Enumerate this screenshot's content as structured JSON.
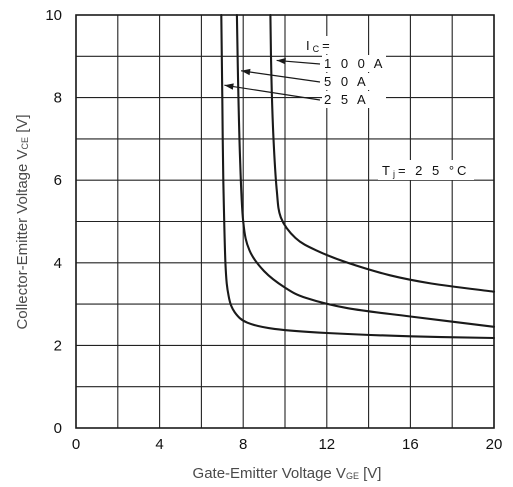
{
  "chart_data": {
    "type": "line",
    "xlabel": {
      "main": "Gate-Emitter Voltage V",
      "sub": "GE",
      "unit": " [V]"
    },
    "ylabel": {
      "main": "Collector-Emitter Voltage V",
      "sub": "CE",
      "unit": " [V]"
    },
    "xlim": [
      0,
      20
    ],
    "ylim": [
      0,
      10
    ],
    "x_ticks": [
      0,
      4,
      8,
      12,
      16,
      20
    ],
    "y_ticks": [
      0,
      2,
      4,
      6,
      8,
      10
    ],
    "x_tick_labels": [
      "0",
      "4",
      "8",
      "12",
      "16",
      "20"
    ],
    "y_tick_labels": [
      "0",
      "2",
      "4",
      "6",
      "8",
      "10"
    ],
    "x_grid_step": 2,
    "y_grid_step": 1,
    "grid": true,
    "ic_label": {
      "main": "I",
      "sub": "C",
      "suffix": "="
    },
    "tj_label": {
      "main": "T",
      "sub": "j",
      "suffix": "= 2 5 °C"
    },
    "series": [
      {
        "name": "1 0 0 A",
        "points": [
          [
            9.3,
            10
          ],
          [
            9.35,
            8.5
          ],
          [
            9.45,
            7.0
          ],
          [
            9.6,
            5.8
          ],
          [
            9.8,
            5.1
          ],
          [
            10.5,
            4.6
          ],
          [
            11.5,
            4.3
          ],
          [
            13,
            4.0
          ],
          [
            15,
            3.7
          ],
          [
            17,
            3.5
          ],
          [
            20,
            3.3
          ]
        ]
      },
      {
        "name": "5 0 A",
        "points": [
          [
            7.7,
            10
          ],
          [
            7.75,
            8.5
          ],
          [
            7.85,
            6.5
          ],
          [
            8.0,
            5.0
          ],
          [
            8.3,
            4.3
          ],
          [
            9,
            3.8
          ],
          [
            10,
            3.4
          ],
          [
            11,
            3.15
          ],
          [
            13,
            2.9
          ],
          [
            16,
            2.7
          ],
          [
            20,
            2.45
          ]
        ]
      },
      {
        "name": "2 5 A",
        "points": [
          [
            6.95,
            10
          ],
          [
            7.0,
            8.0
          ],
          [
            7.05,
            6.0
          ],
          [
            7.15,
            4.0
          ],
          [
            7.3,
            3.2
          ],
          [
            7.6,
            2.8
          ],
          [
            8.2,
            2.55
          ],
          [
            9.5,
            2.4
          ],
          [
            12,
            2.3
          ],
          [
            16,
            2.22
          ],
          [
            20,
            2.18
          ]
        ]
      }
    ],
    "annotations": [
      {
        "label": "1 0 0 A",
        "arrow_tip": [
          9.6,
          8.9
        ]
      },
      {
        "label": "5 0 A",
        "arrow_tip": [
          7.9,
          8.65
        ]
      },
      {
        "label": "2 5 A",
        "arrow_tip": [
          7.1,
          8.3
        ]
      }
    ],
    "colors": {
      "curve": "#1a1a1a",
      "grid": "#222222",
      "background": "#ffffff"
    }
  }
}
